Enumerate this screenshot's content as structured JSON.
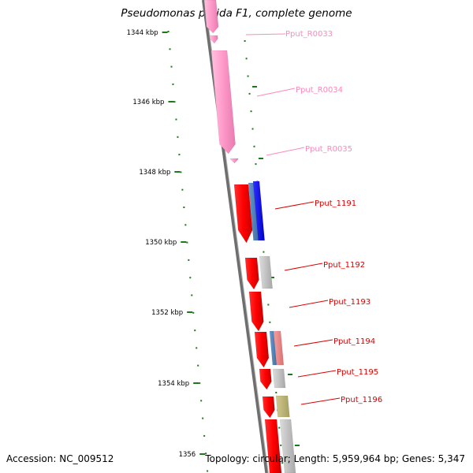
{
  "title": "Pseudomonas putida F1, complete genome",
  "footer": {
    "accession": "Accession: NC_009512",
    "topology": "Topology: circular; Length: 5,959,964 bp; Genes: 5,347"
  },
  "ruler": {
    "unit": "kbp",
    "ticks": [
      {
        "value": 1344,
        "label": "1344 kbp"
      },
      {
        "value": 1346,
        "label": "1346 kbp"
      },
      {
        "value": 1348,
        "label": "1348 kbp"
      },
      {
        "value": 1350,
        "label": "1350 kbp"
      },
      {
        "value": 1352,
        "label": "1352 kbp"
      },
      {
        "value": 1354,
        "label": "1354 kbp"
      },
      {
        "value": 1356,
        "label": "1356"
      }
    ]
  },
  "colors": {
    "backbone": "#808080",
    "rna": "#ff99cc",
    "cds": "#ff0000",
    "cds_label": "#dd0000",
    "rna_label": "#ff88bb",
    "gc_ticks": "#1a7a1a",
    "blue": "#0000ee",
    "steel": "#4a7ab0",
    "gray": "#c0c0c0",
    "salmon": "#f08080",
    "olive": "#bdb76b"
  },
  "genes": [
    {
      "name": "Pput_R0033",
      "kind": "rna"
    },
    {
      "name": "Pput_R0034",
      "kind": "rna"
    },
    {
      "name": "Pput_R0035",
      "kind": "rna"
    },
    {
      "name": "Pput_1191",
      "kind": "cds"
    },
    {
      "name": "Pput_1192",
      "kind": "cds"
    },
    {
      "name": "Pput_1193",
      "kind": "cds"
    },
    {
      "name": "Pput_1194",
      "kind": "cds"
    },
    {
      "name": "Pput_1195",
      "kind": "cds"
    },
    {
      "name": "Pput_1196",
      "kind": "cds"
    }
  ]
}
